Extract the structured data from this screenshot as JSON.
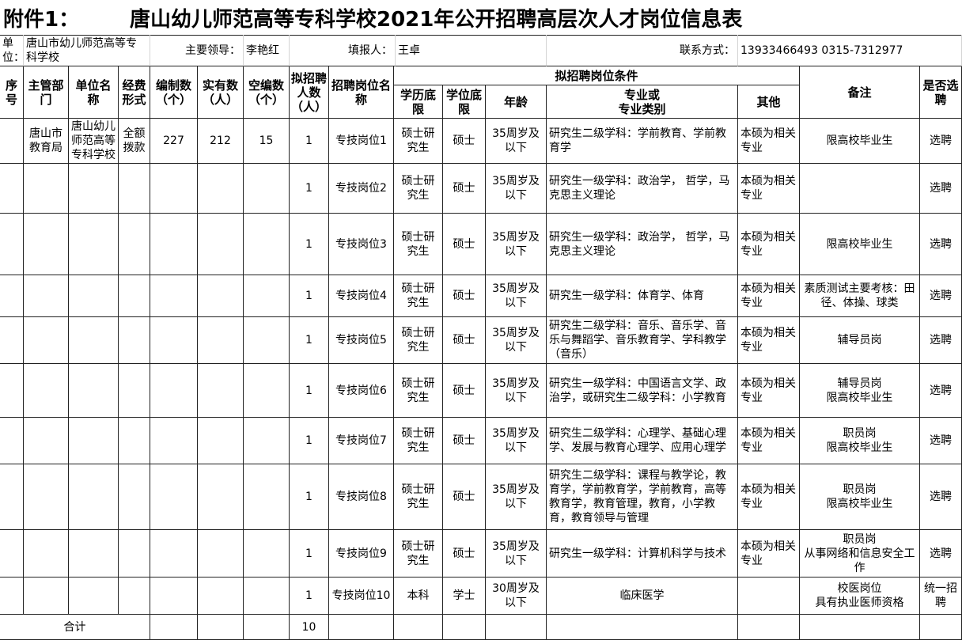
{
  "title": {
    "prefix": "附件1：",
    "text": "唐山幼儿师范高等专科学校2021年公开招聘高层次人才岗位信息表"
  },
  "info": {
    "unit_label": "单位：",
    "unit": "唐山市幼儿师范高等专科学校",
    "leader_label": "主要领导：",
    "leader": "李艳红",
    "filler_label": "填报人：",
    "filler": "王卓",
    "contact_label": "联系方式：",
    "contact": "13933466493   0315-7312977"
  },
  "headers": {
    "seq": "序号",
    "department": "主管部门",
    "unit": "单位名称",
    "funding": "经费形式",
    "authorized": "编制数（个）",
    "actual": "实有数（人）",
    "vacant": "空编数（个）",
    "count": "拟招聘人数（人）",
    "post": "招聘岗位名称",
    "conditions": "拟招聘岗位条件",
    "education": "学历底限",
    "degree": "学位底限",
    "age": "年龄",
    "major": "专业或\n专业类别",
    "other": "其他",
    "note": "备注",
    "selection": "是否选聘"
  },
  "rows": [
    {
      "department": "唐山市教育局",
      "unit": "唐山幼儿师范高等专科学校",
      "funding": "全额拨款",
      "authorized": 227,
      "actual": 212,
      "vacant": 15,
      "count": 1,
      "post": "专技岗位1",
      "education": "硕士研究生",
      "degree": "硕士",
      "age": "35周岁及以下",
      "major": "研究生二级学科：学前教育、学前教育学",
      "other": "本硕为相关专业",
      "note": "限高校毕业生",
      "selection": "选聘"
    },
    {
      "count": 1,
      "post": "专技岗位2",
      "education": "硕士研究生",
      "degree": "硕士",
      "age": "35周岁及以下",
      "major": "研究生一级学科：政治学， 哲学，马克思主义理论",
      "other": "本硕为相关专业",
      "selection": "选聘"
    },
    {
      "count": 1,
      "post": "专技岗位3",
      "education": "硕士研究生",
      "degree": "硕士",
      "age": "35周岁及以下",
      "major": "研究生一级学科：政治学， 哲学，马克思主义理论",
      "other": "本硕为相关专业",
      "note": "限高校毕业生",
      "selection": "选聘"
    },
    {
      "count": 1,
      "post": "专技岗位4",
      "education": "硕士研究生",
      "degree": "硕士",
      "age": "35周岁及以下",
      "major": "研究生一级学科：体育学、体育",
      "other": "本硕为相关专业",
      "note": "素质测试主要考核：田径、体操、球类",
      "selection": "选聘"
    },
    {
      "count": 1,
      "post": "专技岗位5",
      "education": "硕士研究生",
      "degree": "硕士",
      "age": "35周岁及以下",
      "major": "研究生二级学科：音乐、音乐学、音乐与舞蹈学、音乐教育学、学科教学（音乐）",
      "other": "本硕为相关专业",
      "note": "辅导员岗",
      "selection": "选聘"
    },
    {
      "count": 1,
      "post": "专技岗位6",
      "education": "硕士研究生",
      "degree": "硕士",
      "age": "35周岁及以下",
      "major": "研究生一级学科：中国语言文学、政治学，或研究生二级学科：小学教育",
      "other": "本硕为相关专业",
      "note": "辅导员岗\n限高校毕业生",
      "selection": "选聘"
    },
    {
      "count": 1,
      "post": "专技岗位7",
      "education": "硕士研究生",
      "degree": "硕士",
      "age": "35周岁及以下",
      "major": "研究生二级学科：心理学、基础心理学、发展与教育心理学、应用心理学",
      "other": "本硕为相关专业",
      "note": "职员岗\n限高校毕业生",
      "selection": "选聘"
    },
    {
      "count": 1,
      "post": "专技岗位8",
      "education": "硕士研究生",
      "degree": "硕士",
      "age": "35周岁及以下",
      "major": "研究生二级学科：课程与教学论，教育学，学前教育学，学前教育，高等教育学，教育管理，教育，小学教育，教育领导与管理",
      "other": "本硕为相关专业",
      "note": "职员岗\n限高校毕业生",
      "selection": "选聘"
    },
    {
      "count": 1,
      "post": "专技岗位9",
      "education": "硕士研究生",
      "degree": "硕士",
      "age": "35周岁及以下",
      "major": "研究生一级学科：计算机科学与技术",
      "other": "本硕为相关专业",
      "note": "职员岗\n从事网络和信息安全工作",
      "selection": "选聘"
    },
    {
      "count": 1,
      "post": "专技岗位10",
      "education": "本科",
      "degree": "学士",
      "age": "30周岁及以下",
      "major": "临床医学",
      "note": "校医岗位\n具有执业医师资格",
      "selection": "统一招聘"
    }
  ],
  "total": {
    "label": "合计",
    "value": 10
  }
}
